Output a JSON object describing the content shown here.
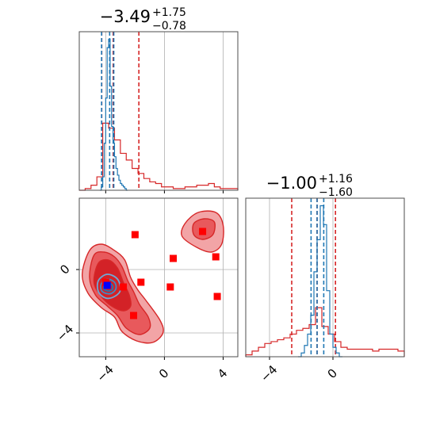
{
  "chart_data": [
    {
      "type": "histogram",
      "panel": "marginal-1",
      "title": {
        "value": "−3.49",
        "plus": "+1.75",
        "minus": "−0.78"
      },
      "xlim": [
        -5.8,
        5.0
      ],
      "xticks": [
        -4,
        0,
        4
      ],
      "grid": true,
      "series": [
        {
          "color": "#1f77b4",
          "bins": [
            [
              -4.4,
              0.0
            ],
            [
              -4.3,
              0.02
            ],
            [
              -4.2,
              0.08
            ],
            [
              -4.1,
              0.28
            ],
            [
              -4.0,
              0.55
            ],
            [
              -3.9,
              0.85
            ],
            [
              -3.8,
              0.9
            ],
            [
              -3.7,
              0.62
            ],
            [
              -3.6,
              0.38
            ],
            [
              -3.5,
              0.28
            ],
            [
              -3.4,
              0.2
            ],
            [
              -3.3,
              0.13
            ],
            [
              -3.2,
              0.09
            ],
            [
              -3.1,
              0.06
            ],
            [
              -3.0,
              0.04
            ],
            [
              -2.9,
              0.03
            ],
            [
              -2.8,
              0.02
            ],
            [
              -2.7,
              0.01
            ],
            [
              -2.6,
              0.0
            ]
          ],
          "quantiles": [
            -4.28,
            -3.73,
            -3.45
          ]
        },
        {
          "color": "#d62728",
          "bins": [
            [
              -5.8,
              0.0
            ],
            [
              -5.4,
              0.01
            ],
            [
              -5.0,
              0.03
            ],
            [
              -4.6,
              0.08
            ],
            [
              -4.2,
              0.4
            ],
            [
              -3.8,
              0.37
            ],
            [
              -3.4,
              0.3
            ],
            [
              -3.0,
              0.22
            ],
            [
              -2.6,
              0.18
            ],
            [
              -2.2,
              0.13
            ],
            [
              -1.8,
              0.1
            ],
            [
              -1.4,
              0.07
            ],
            [
              -1.0,
              0.05
            ],
            [
              -0.6,
              0.04
            ],
            [
              -0.2,
              0.02
            ],
            [
              0.2,
              0.02
            ],
            [
              0.6,
              0.01
            ],
            [
              1.0,
              0.01
            ],
            [
              1.4,
              0.02
            ],
            [
              1.8,
              0.02
            ],
            [
              2.2,
              0.03
            ],
            [
              2.6,
              0.03
            ],
            [
              3.0,
              0.04
            ],
            [
              3.4,
              0.02
            ],
            [
              3.8,
              0.01
            ],
            [
              4.2,
              0.01
            ],
            [
              4.6,
              0.01
            ]
          ],
          "quantiles": [
            -4.27,
            -3.49,
            -1.74
          ]
        }
      ]
    },
    {
      "type": "histogram",
      "panel": "marginal-2",
      "title": {
        "value": "−1.00",
        "plus": "+1.16",
        "minus": "−1.60"
      },
      "xlim": [
        -5.5,
        4.5
      ],
      "xticks": [
        -4,
        0
      ],
      "grid": true,
      "series": [
        {
          "color": "#1f77b4",
          "bins": [
            [
              -2.2,
              0.0
            ],
            [
              -2.0,
              0.02
            ],
            [
              -1.8,
              0.06
            ],
            [
              -1.6,
              0.12
            ],
            [
              -1.4,
              0.22
            ],
            [
              -1.2,
              0.45
            ],
            [
              -1.0,
              0.62
            ],
            [
              -0.8,
              0.8
            ],
            [
              -0.6,
              0.7
            ],
            [
              -0.4,
              0.35
            ],
            [
              -0.2,
              0.12
            ],
            [
              0.0,
              0.05
            ],
            [
              0.2,
              0.02
            ],
            [
              0.4,
              0.0
            ]
          ],
          "quantiles": [
            -1.38,
            -1.0,
            -0.58
          ]
        },
        {
          "color": "#d62728",
          "bins": [
            [
              -5.5,
              0.01
            ],
            [
              -5.1,
              0.03
            ],
            [
              -4.7,
              0.05
            ],
            [
              -4.3,
              0.07
            ],
            [
              -3.9,
              0.08
            ],
            [
              -3.5,
              0.09
            ],
            [
              -3.1,
              0.1
            ],
            [
              -2.7,
              0.12
            ],
            [
              -2.3,
              0.14
            ],
            [
              -1.9,
              0.15
            ],
            [
              -1.5,
              0.17
            ],
            [
              -1.1,
              0.26
            ],
            [
              -0.7,
              0.16
            ],
            [
              -0.3,
              0.12
            ],
            [
              0.1,
              0.08
            ],
            [
              0.5,
              0.05
            ],
            [
              0.9,
              0.04
            ],
            [
              1.3,
              0.04
            ],
            [
              1.7,
              0.04
            ],
            [
              2.1,
              0.04
            ],
            [
              2.5,
              0.03
            ],
            [
              2.9,
              0.04
            ],
            [
              3.3,
              0.04
            ],
            [
              3.7,
              0.04
            ],
            [
              4.1,
              0.03
            ]
          ],
          "quantiles": [
            -2.6,
            -1.0,
            0.16
          ]
        }
      ]
    },
    {
      "type": "scatter",
      "panel": "joint-2d",
      "xlim": [
        -5.8,
        5.0
      ],
      "ylim": [
        -5.5,
        4.5
      ],
      "xticks": [
        -4,
        0,
        4
      ],
      "yticks": [
        0,
        -4
      ],
      "grid": true,
      "contours": {
        "red": [
          {
            "level": "outer",
            "fill": "#f2a4a6",
            "points": [
              [
                -5.1,
                1.2
              ],
              [
                -4.3,
                1.6
              ],
              [
                -3.4,
                1.2
              ],
              [
                -2.7,
                0.6
              ],
              [
                -2.3,
                -0.5
              ],
              [
                -1.8,
                -1.3
              ],
              [
                -1.3,
                -1.9
              ],
              [
                -0.3,
                -3.2
              ],
              [
                -0.1,
                -4.0
              ],
              [
                -0.8,
                -4.6
              ],
              [
                -1.9,
                -4.5
              ],
              [
                -2.9,
                -3.9
              ],
              [
                -3.4,
                -3.0
              ],
              [
                -4.3,
                -2.4
              ],
              [
                -5.2,
                -1.5
              ],
              [
                -5.6,
                -0.3
              ]
            ]
          },
          {
            "level": "middle",
            "fill": "#e8595c",
            "points": [
              [
                -4.8,
                0.9
              ],
              [
                -4.1,
                1.1
              ],
              [
                -3.4,
                0.8
              ],
              [
                -2.9,
                0.2
              ],
              [
                -2.5,
                -0.7
              ],
              [
                -2.1,
                -1.4
              ],
              [
                -1.7,
                -2.2
              ],
              [
                -1.1,
                -3.0
              ],
              [
                -1.0,
                -3.7
              ],
              [
                -1.7,
                -4.1
              ],
              [
                -2.6,
                -3.7
              ],
              [
                -3.2,
                -2.9
              ],
              [
                -3.9,
                -2.3
              ],
              [
                -4.7,
                -1.6
              ],
              [
                -5.1,
                -0.5
              ]
            ]
          },
          {
            "level": "inner",
            "fill": "#d32227",
            "points": [
              [
                -4.5,
                0.4
              ],
              [
                -3.8,
                0.6
              ],
              [
                -3.2,
                0.1
              ],
              [
                -2.8,
                -0.8
              ],
              [
                -2.4,
                -1.6
              ],
              [
                -2.3,
                -2.3
              ],
              [
                -2.8,
                -2.6
              ],
              [
                -3.6,
                -2.3
              ],
              [
                -4.3,
                -1.7
              ],
              [
                -4.8,
                -0.8
              ]
            ]
          },
          {
            "level": "island",
            "fill": "#f2a4a6",
            "points": [
              [
                1.4,
                2.9
              ],
              [
                2.3,
                3.6
              ],
              [
                3.5,
                3.6
              ],
              [
                4.0,
                2.8
              ],
              [
                3.9,
                1.6
              ],
              [
                3.2,
                1.1
              ],
              [
                2.2,
                1.4
              ],
              [
                1.2,
                2.1
              ]
            ]
          },
          {
            "level": "island-inner",
            "fill": "#e8595c",
            "points": [
              [
                2.0,
                2.9
              ],
              [
                2.7,
                3.2
              ],
              [
                3.4,
                3.0
              ],
              [
                3.3,
                2.2
              ],
              [
                2.6,
                1.9
              ],
              [
                2.0,
                2.2
              ]
            ]
          }
        ],
        "blue": [
          {
            "level": "outer",
            "points": [
              [
                -4.5,
                -0.7
              ],
              [
                -3.9,
                -0.3
              ],
              [
                -3.2,
                -0.6
              ],
              [
                -3.0,
                -1.3
              ],
              [
                -3.4,
                -1.7
              ],
              [
                -4.0,
                -1.8
              ],
              [
                -4.5,
                -1.4
              ]
            ]
          },
          {
            "level": "middle",
            "points": [
              [
                -4.3,
                -0.9
              ],
              [
                -3.9,
                -0.6
              ],
              [
                -3.4,
                -0.8
              ],
              [
                -3.3,
                -1.2
              ],
              [
                -3.6,
                -1.5
              ],
              [
                -4.0,
                -1.5
              ],
              [
                -4.3,
                -1.3
              ]
            ]
          },
          {
            "level": "inner",
            "points": [
              [
                -4.1,
                -1.0
              ],
              [
                -3.8,
                -0.85
              ],
              [
                -3.55,
                -1.0
              ],
              [
                -3.55,
                -1.25
              ],
              [
                -3.8,
                -1.35
              ],
              [
                -4.1,
                -1.25
              ]
            ]
          }
        ]
      },
      "series": [
        {
          "color": "#ff0000",
          "marker": "square",
          "x": [
            -2.0,
            2.6,
            0.6,
            -1.6,
            3.5,
            -2.8,
            0.4,
            3.6,
            -2.1,
            -4.0
          ],
          "y": [
            2.2,
            2.4,
            0.7,
            -0.8,
            0.8,
            -1.1,
            -1.1,
            -1.7,
            -2.9,
            -0.8
          ]
        },
        {
          "color": "#0000ff",
          "marker": "square",
          "x": [
            -3.9
          ],
          "y": [
            -1.0
          ]
        }
      ]
    }
  ]
}
